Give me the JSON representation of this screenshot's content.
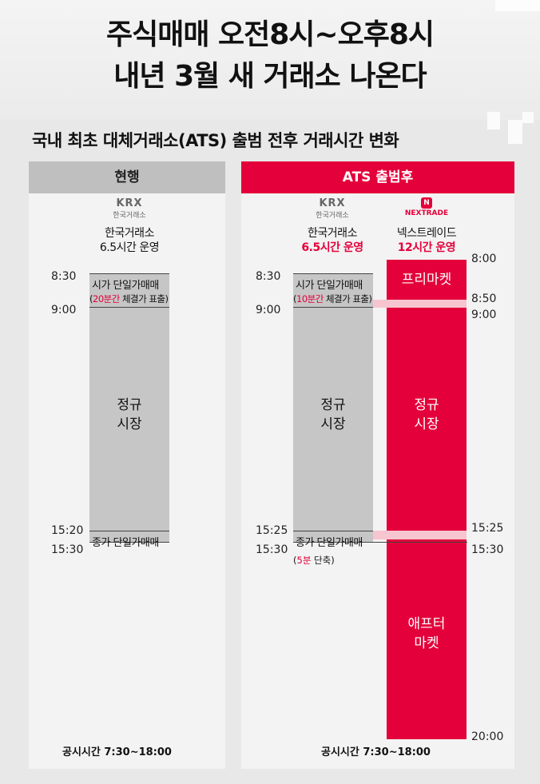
{
  "header": {
    "title_line1": "주식매매 오전8시~오후8시",
    "title_line2": "내년 3월 새 거래소 나온다"
  },
  "subtitle": "국내 최초 대체거래소(ATS) 출범 전후 거래시간 변화",
  "left": {
    "header": "현행",
    "krx_logo": "KRX",
    "krx_logo_sub": "한국거래소",
    "exchange_name": "한국거래소",
    "hours": "6.5시간 운영",
    "t_830": "8:30",
    "t_900": "9:00",
    "t_1520": "15:20",
    "t_1530": "15:30",
    "open_auction": "시가 단일가매매",
    "open_note_paren_open": "(",
    "open_note_highlight": "20분간",
    "open_note_rest": " 체결가 표출)",
    "regular_l1": "정규",
    "regular_l2": "시장",
    "close_auction": "종가 단일가매매",
    "notice": "공시시간 7:30~18:00"
  },
  "right": {
    "header": "ATS 출범후",
    "krx_logo": "KRX",
    "krx_logo_sub": "한국거래소",
    "krx_name": "한국거래소",
    "krx_hours": "6.5시간 운영",
    "nxt_logo": "NEXTRADE",
    "nxt_name": "넥스트레이드",
    "nxt_hours": "12시간 운영",
    "t_830": "8:30",
    "t_900_left": "9:00",
    "t_1525_left": "15:25",
    "t_1530_left": "15:30",
    "t_800": "8:00",
    "t_850": "8:50",
    "t_900_right": "9:00",
    "t_1525_right": "15:25",
    "t_1530_right": "15:30",
    "t_2000": "20:00",
    "open_auction": "시가 단일가매매",
    "open_note_paren_open": "(",
    "open_note_highlight": "10분간",
    "open_note_rest": " 체결가 표출)",
    "krx_regular_l1": "정규",
    "krx_regular_l2": "시장",
    "close_auction": "종가 단일가매매",
    "close_note_paren_open": "(",
    "close_note_highlight": "5분",
    "close_note_rest": " 단축)",
    "premarket": "프리마켓",
    "nxt_regular_l1": "정규",
    "nxt_regular_l2": "시장",
    "after_l1": "애프터",
    "after_l2": "마켓",
    "notice": "공시시간 7:30~18:00"
  },
  "colors": {
    "accent_red": "#e4003a",
    "bar_gray": "#c6c6c6",
    "header_gray": "#bfbfbf"
  }
}
